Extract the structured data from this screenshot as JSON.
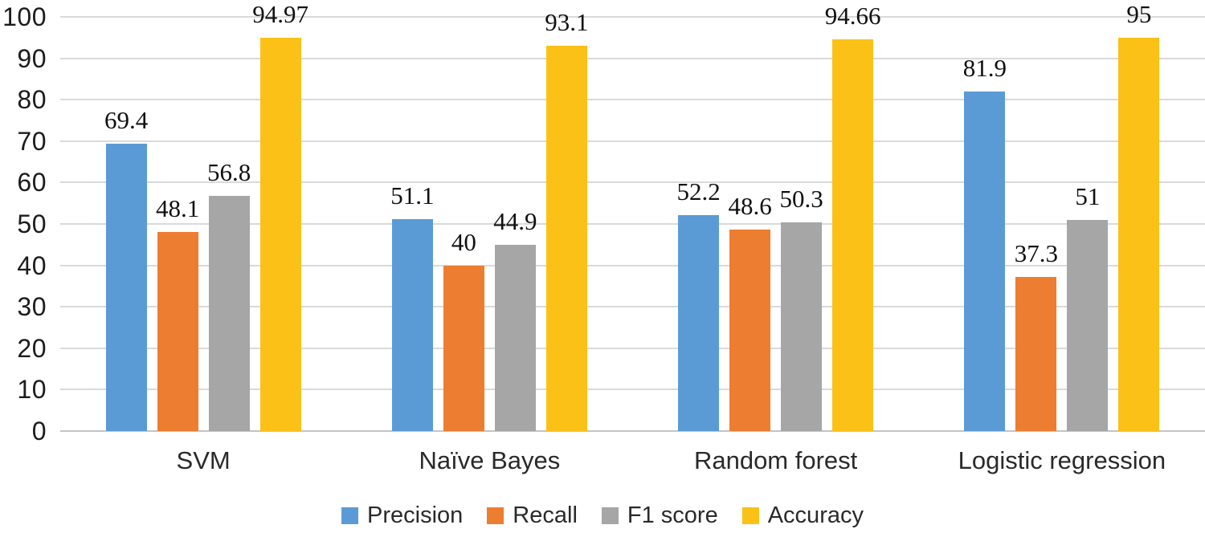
{
  "chart_data": {
    "type": "bar",
    "categories": [
      "SVM",
      "Naïve Bayes",
      "Random forest",
      "Logistic regression"
    ],
    "series": [
      {
        "name": "Precision",
        "color": "#5B9BD5",
        "values": [
          69.4,
          51.1,
          52.2,
          81.9
        ]
      },
      {
        "name": "Recall",
        "color": "#ED7D31",
        "values": [
          48.1,
          40,
          48.6,
          37.3
        ]
      },
      {
        "name": "F1 score",
        "color": "#A6A6A6",
        "values": [
          56.8,
          44.9,
          50.3,
          51
        ]
      },
      {
        "name": "Accuracy",
        "color": "#FBC116",
        "values": [
          94.97,
          93.1,
          94.66,
          95
        ]
      }
    ],
    "title": "",
    "xlabel": "",
    "ylabel": "",
    "ylim": [
      0,
      100
    ],
    "yticks": [
      0,
      10,
      20,
      30,
      40,
      50,
      60,
      70,
      80,
      90,
      100
    ],
    "grid": "horizontal",
    "legend_position": "bottom",
    "data_labels_shown": true,
    "colors": {
      "gridline": "#dadada",
      "axis_line": "#c4c4c4",
      "tick_text": "#1c1c1c",
      "label_text": "#111111"
    }
  }
}
